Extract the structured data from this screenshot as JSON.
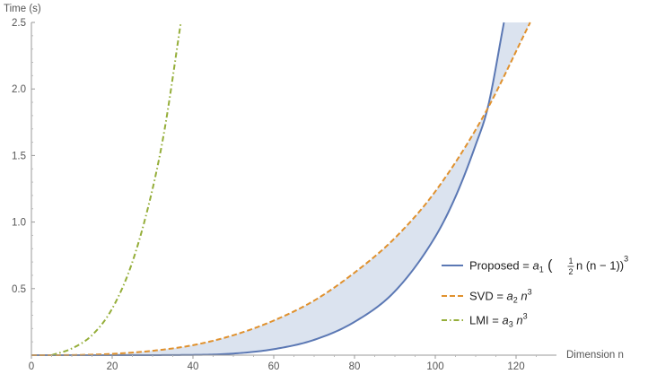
{
  "chart_data": {
    "type": "line",
    "xlabel": "Dimension n",
    "ylabel": "Time (s)",
    "xlim": [
      0,
      130
    ],
    "ylim": [
      0,
      2.5
    ],
    "x_ticks": [
      0,
      20,
      40,
      60,
      80,
      100,
      120
    ],
    "y_ticks": [
      0.5,
      1.0,
      1.5,
      2.0,
      2.5
    ],
    "x_tick_labels": [
      "0",
      "20",
      "40",
      "60",
      "80",
      "100",
      "120"
    ],
    "y_tick_labels": [
      "0.5",
      "1.0",
      "1.5",
      "2.0",
      "2.5"
    ],
    "grid": false,
    "legend_position": "right",
    "series": [
      {
        "name": "Proposed",
        "color": "#5b78b4",
        "style": "solid",
        "x": [
          0,
          20,
          40,
          50,
          60,
          70,
          80,
          90,
          100,
          105,
          110,
          113,
          117
        ],
        "y": [
          0,
          0,
          0.002,
          0.012,
          0.045,
          0.115,
          0.25,
          0.48,
          0.89,
          1.19,
          1.58,
          1.86,
          2.5
        ]
      },
      {
        "name": "SVD",
        "color": "#e0912e",
        "style": "dashed",
        "x": [
          0,
          10,
          20,
          30,
          40,
          50,
          60,
          70,
          80,
          90,
          100,
          112,
          123.5
        ],
        "y": [
          0,
          0.001,
          0.01,
          0.033,
          0.075,
          0.15,
          0.26,
          0.41,
          0.62,
          0.88,
          1.23,
          1.8,
          2.5
        ]
      },
      {
        "name": "LMI",
        "color": "#95ae3a",
        "style": "dash-dot",
        "x": [
          5,
          10,
          15,
          20,
          25,
          30,
          33,
          37
        ],
        "y": [
          0,
          0.05,
          0.15,
          0.35,
          0.7,
          1.25,
          1.7,
          2.5
        ]
      }
    ],
    "shaded_region": {
      "between": [
        "Proposed",
        "SVD"
      ],
      "color": "#dbe3ef"
    },
    "legend": [
      {
        "series": "Proposed",
        "label_parts": [
          "Proposed = ",
          "a",
          "1",
          " (",
          "1",
          "2",
          " n (n − 1))",
          "3"
        ]
      },
      {
        "series": "SVD",
        "label_parts": [
          "SVD = ",
          "a",
          "2",
          " n",
          "3"
        ]
      },
      {
        "series": "LMI",
        "label_parts": [
          "LMI = ",
          "a",
          "3",
          " n",
          "3"
        ]
      }
    ]
  }
}
